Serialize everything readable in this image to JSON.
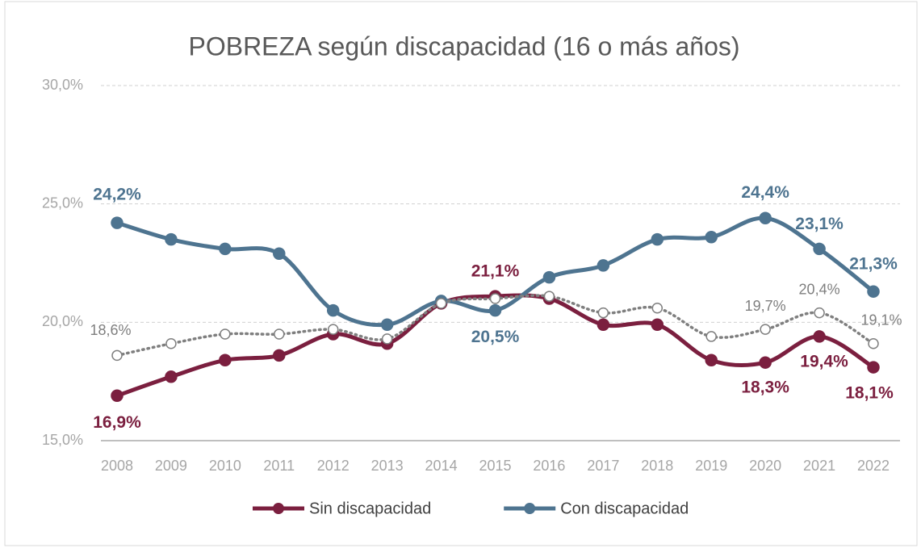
{
  "chart_data": {
    "type": "line",
    "title": "POBREZA según discapacidad (16 o más años)",
    "categories": [
      "2008",
      "2009",
      "2010",
      "2011",
      "2012",
      "2013",
      "2014",
      "2015",
      "2016",
      "2017",
      "2018",
      "2019",
      "2020",
      "2021",
      "2022"
    ],
    "series": [
      {
        "name": "Sin discapacidad",
        "color": "#7b1f3f",
        "values": [
          16.9,
          17.7,
          18.4,
          18.6,
          19.5,
          19.1,
          20.8,
          21.1,
          21.0,
          19.9,
          19.9,
          18.4,
          18.3,
          19.4,
          18.1
        ],
        "value_labels": [
          "16,9%",
          null,
          null,
          null,
          null,
          null,
          null,
          "21,1%",
          null,
          null,
          null,
          null,
          "18,3%",
          "19,4%",
          "18,1%"
        ]
      },
      {
        "name": "Con discapacidad",
        "color": "#4e7490",
        "values": [
          24.2,
          23.5,
          23.1,
          22.9,
          20.5,
          19.9,
          20.9,
          20.5,
          21.9,
          22.4,
          23.5,
          23.6,
          24.4,
          23.1,
          21.3
        ],
        "value_labels": [
          "24,2%",
          null,
          null,
          null,
          null,
          null,
          null,
          "20,5%",
          null,
          null,
          null,
          null,
          "24,4%",
          "23,1%",
          "21,3%"
        ]
      },
      {
        "color": "#7f7f7f",
        "dotted": true,
        "values": [
          18.6,
          19.1,
          19.5,
          19.5,
          19.7,
          19.3,
          20.8,
          21.0,
          21.1,
          20.4,
          20.6,
          19.4,
          19.7,
          20.4,
          19.1
        ],
        "value_labels": [
          "18,6%",
          null,
          null,
          null,
          null,
          null,
          null,
          null,
          null,
          null,
          null,
          null,
          "19,7%",
          "20,4%",
          "19,1%"
        ]
      }
    ],
    "ylim": [
      15,
      30
    ],
    "yticks": [
      {
        "value": 15,
        "label": "15,0%"
      },
      {
        "value": 20,
        "label": "20,0%"
      },
      {
        "value": 25,
        "label": "25,0%"
      },
      {
        "value": 30,
        "label": "30,0%"
      }
    ],
    "grid": true,
    "legend": "bottom"
  }
}
